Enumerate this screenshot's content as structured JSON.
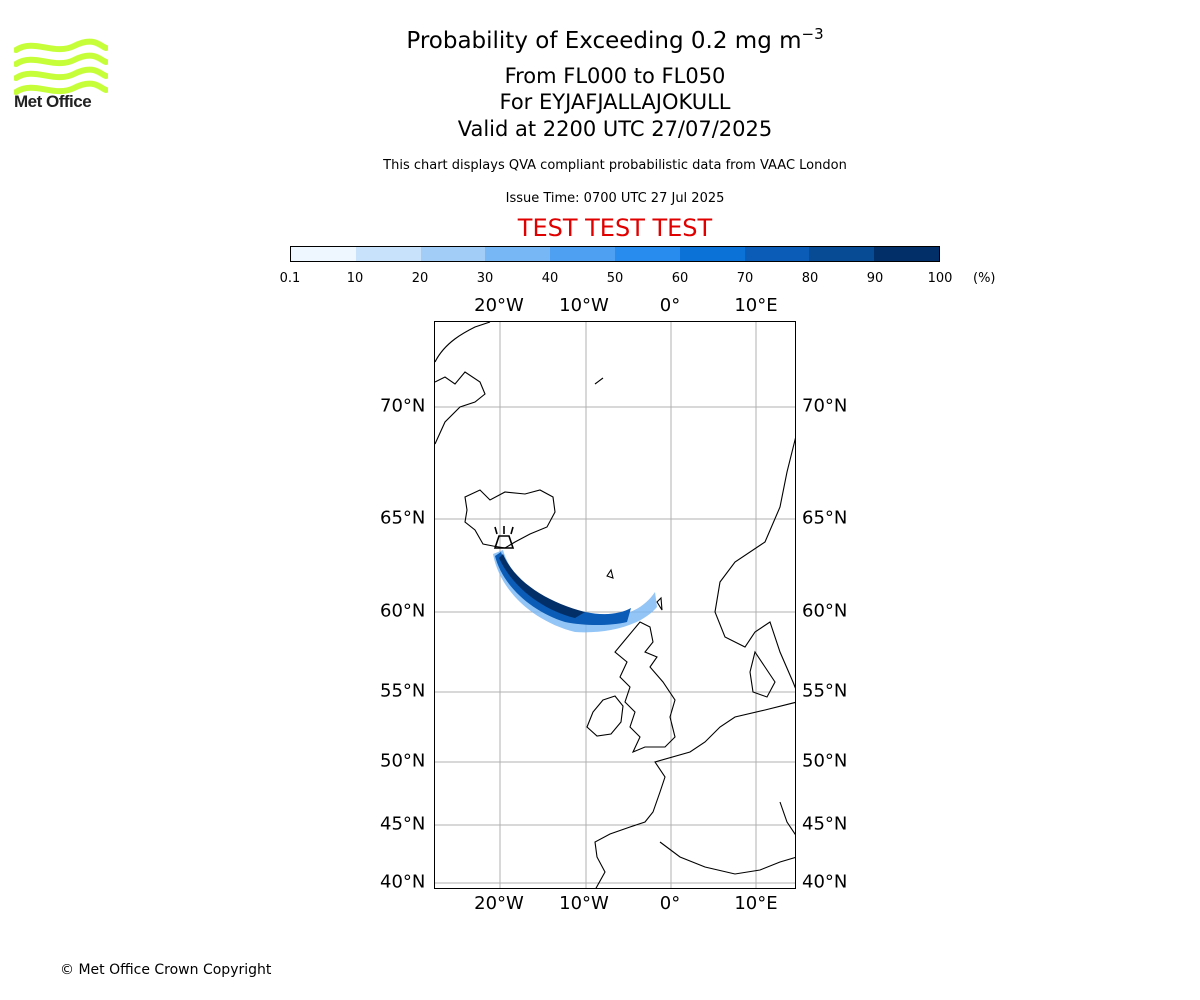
{
  "header": {
    "title_main": "Probability of Exceeding 0.2 mg m",
    "title_sup": "−3",
    "levels": "From FL000 to FL050",
    "volcano": "For EYJAFJALLAJOKULL",
    "valid": "Valid at 2200 UTC 27/07/2025",
    "disclaimer": "This chart displays QVA compliant probabilistic data from VAAC London",
    "issue": "Issue Time: 0700 UTC 27 Jul 2025",
    "test_banner": "TEST TEST TEST"
  },
  "logo": {
    "text": "Met Office",
    "color": "#c6ff3a",
    "icon": "met-office-waves-icon"
  },
  "colorbar": {
    "labels": [
      "0.1",
      "10",
      "20",
      "30",
      "40",
      "50",
      "60",
      "70",
      "80",
      "90",
      "100"
    ],
    "unit": "(%)",
    "colors": [
      "#eef6ff",
      "#c8e2fb",
      "#a2cdf7",
      "#78b7f5",
      "#4ea1f2",
      "#288cee",
      "#0b72d8",
      "#0a5cb6",
      "#064b94",
      "#032f68"
    ]
  },
  "map": {
    "lon_labels": [
      "20°W",
      "10°W",
      "0°",
      "10°E"
    ],
    "lat_labels": [
      "70°N",
      "65°N",
      "60°N",
      "55°N",
      "50°N",
      "45°N",
      "40°N"
    ],
    "volcano_marker": "volcano-icon"
  },
  "footer": {
    "copyright": "© Met Office Crown Copyright"
  }
}
